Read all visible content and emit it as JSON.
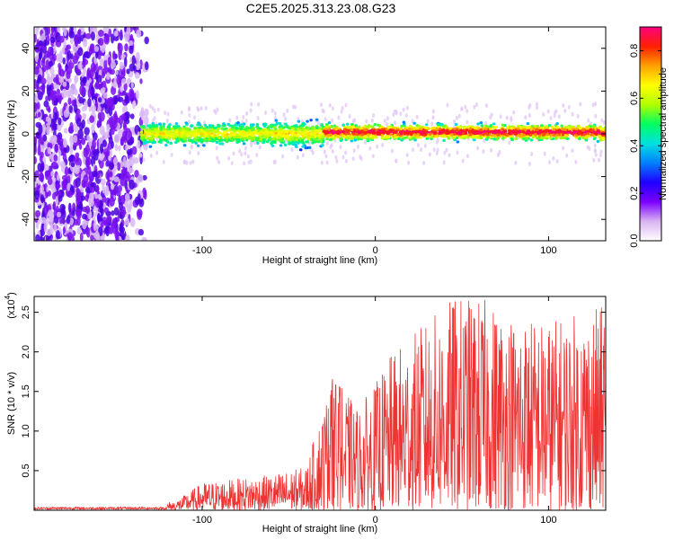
{
  "title": "C2E5.2025.313.23.08.G23",
  "chart_data": [
    {
      "type": "heatmap",
      "title": "C2E5.2025.313.23.08.G23",
      "xlabel": "Height of straight line (km)",
      "ylabel": "Frequency (Hz)",
      "xlim": [
        -197,
        133
      ],
      "ylim": [
        -50,
        50
      ],
      "xticks": [
        -100,
        0,
        100
      ],
      "yticks": [
        -40,
        -20,
        0,
        20,
        40
      ],
      "colorbar": {
        "label": "Normalized spectral amplitude",
        "range": [
          0.0,
          0.9
        ],
        "ticks": [
          "0.0",
          "0.2",
          "0.4",
          "0.6",
          "0.8"
        ],
        "colors": [
          "#ffffff",
          "#d9b3f2",
          "#7a00ff",
          "#2000ff",
          "#0080ff",
          "#00e0e0",
          "#00ff60",
          "#b0ff00",
          "#ffff00",
          "#ffa000",
          "#ff2000",
          "#ff0080"
        ]
      },
      "regions": [
        {
          "name": "broadband noise",
          "x_range": [
            -197,
            -135
          ],
          "freq_range": [
            -50,
            50
          ],
          "amplitude": 0.05
        },
        {
          "name": "faint scatter",
          "x_range": [
            -135,
            -110
          ],
          "freq_range": [
            -50,
            50
          ],
          "amplitude": 0.02
        },
        {
          "name": "signal band",
          "x_range": [
            -135,
            133
          ],
          "center_freq_hz": 0,
          "halfwidth_hz": 6,
          "amplitude_peak": 0.9
        }
      ]
    },
    {
      "type": "line",
      "xlabel": "Height of straight line (km)",
      "ylabel": "SNR (10 * v/v)",
      "ylabel_scale": "(x10",
      "ylabel_exponent": "4",
      "xlim": [
        -197,
        133
      ],
      "ylim": [
        0,
        2.7
      ],
      "xticks": [
        -100,
        0,
        100
      ],
      "yticks": [
        "0.5",
        "1.0",
        "1.5",
        "2.0",
        "2.5"
      ],
      "color": "#ee3333",
      "series_envelope": [
        {
          "x": -197,
          "y": 0.02
        },
        {
          "x": -140,
          "y": 0.05
        },
        {
          "x": -115,
          "y": 0.12
        },
        {
          "x": -100,
          "y": 0.35
        },
        {
          "x": -80,
          "y": 0.4
        },
        {
          "x": -60,
          "y": 0.45
        },
        {
          "x": -40,
          "y": 0.55
        },
        {
          "x": -25,
          "y": 1.7
        },
        {
          "x": -10,
          "y": 1.3
        },
        {
          "x": 0,
          "y": 1.6
        },
        {
          "x": 10,
          "y": 2.0
        },
        {
          "x": 30,
          "y": 2.4
        },
        {
          "x": 45,
          "y": 2.7
        },
        {
          "x": 60,
          "y": 2.7
        },
        {
          "x": 80,
          "y": 2.5
        },
        {
          "x": 100,
          "y": 2.4
        },
        {
          "x": 133,
          "y": 2.6
        }
      ]
    }
  ]
}
